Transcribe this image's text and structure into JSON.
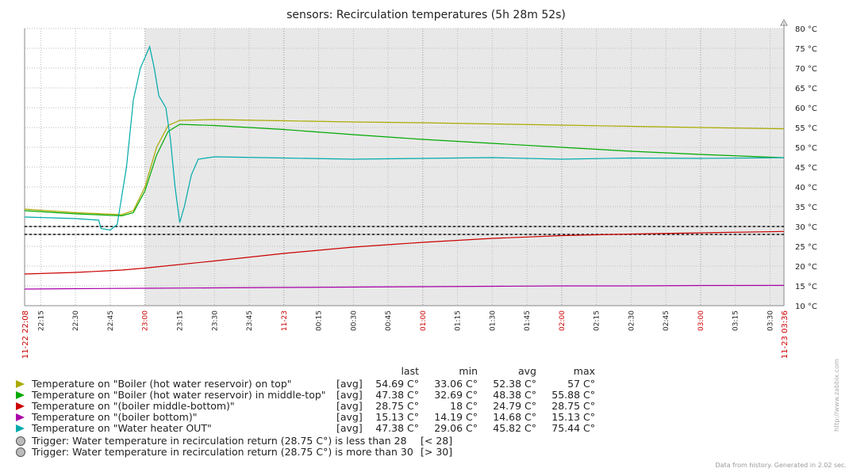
{
  "page": {
    "footer": "Data from history. Generated in 2.02 sec.",
    "side_text": "http://www.zabbix.com"
  },
  "chart_data": {
    "type": "line",
    "title": "sensors: Recirculation temperatures (5h 28m 52s)",
    "x_range": [
      "11-22 22:08",
      "11-23 03:36"
    ],
    "x_tick_labels": [
      "22:15",
      "22:30",
      "22:45",
      "23:00",
      "23:15",
      "23:30",
      "23:45",
      "11-23",
      "00:15",
      "00:30",
      "00:45",
      "01:00",
      "01:15",
      "01:30",
      "01:45",
      "02:00",
      "02:15",
      "02:30",
      "02:45",
      "03:00",
      "03:15",
      "03:30"
    ],
    "x_tick_highlight": [
      "23:00",
      "11-23",
      "01:00",
      "02:00",
      "03:00"
    ],
    "x_edge_labels": [
      "11-22 22:08",
      "11-23 03:36"
    ],
    "y_tick_labels": [
      "10 °C",
      "15 °C",
      "20 °C",
      "25 °C",
      "30 °C",
      "35 °C",
      "40 °C",
      "45 °C",
      "50 °C",
      "55 °C",
      "60 °C",
      "65 °C",
      "70 °C",
      "75 °C",
      "80 °C"
    ],
    "ylim": [
      10,
      80
    ],
    "grid": true,
    "shaded_region": [
      "23:00",
      "03:36"
    ],
    "triggers": [
      28,
      30
    ],
    "series": [
      {
        "name": "Temperature on \"Boiler (hot water reservoir) on top\"",
        "color": "#aaaa00",
        "points": [
          [
            "22:08",
            34.4
          ],
          [
            "22:30",
            33.5
          ],
          [
            "22:50",
            33.0
          ],
          [
            "22:55",
            34
          ],
          [
            "23:00",
            40
          ],
          [
            "23:05",
            50
          ],
          [
            "23:10",
            55.5
          ],
          [
            "23:15",
            56.8
          ],
          [
            "23:30",
            57.0
          ],
          [
            "00:00",
            56.7
          ],
          [
            "00:30",
            56.4
          ],
          [
            "01:00",
            56.2
          ],
          [
            "01:30",
            55.9
          ],
          [
            "02:00",
            55.6
          ],
          [
            "02:30",
            55.3
          ],
          [
            "03:00",
            55.0
          ],
          [
            "03:36",
            54.69
          ]
        ]
      },
      {
        "name": "Temperature on \"Boiler (hot water reservoir) in middle-top\"",
        "color": "#00aa00",
        "points": [
          [
            "22:08",
            34.0
          ],
          [
            "22:30",
            33.2
          ],
          [
            "22:50",
            32.7
          ],
          [
            "22:55",
            33.5
          ],
          [
            "23:00",
            39
          ],
          [
            "23:05",
            48
          ],
          [
            "23:10",
            54
          ],
          [
            "23:15",
            55.8
          ],
          [
            "23:30",
            55.5
          ],
          [
            "00:00",
            54.5
          ],
          [
            "00:30",
            53.2
          ],
          [
            "01:00",
            52.0
          ],
          [
            "01:30",
            51.0
          ],
          [
            "02:00",
            50.0
          ],
          [
            "02:30",
            49.0
          ],
          [
            "03:00",
            48.2
          ],
          [
            "03:36",
            47.38
          ]
        ]
      },
      {
        "name": "Temperature on \"(boiler middle-bottom)\"",
        "color": "#cc0000",
        "points": [
          [
            "22:08",
            18.0
          ],
          [
            "22:30",
            18.4
          ],
          [
            "22:50",
            19.0
          ],
          [
            "23:00",
            19.5
          ],
          [
            "23:30",
            21.3
          ],
          [
            "00:00",
            23.2
          ],
          [
            "00:30",
            24.8
          ],
          [
            "01:00",
            26.0
          ],
          [
            "01:30",
            27.0
          ],
          [
            "02:00",
            27.7
          ],
          [
            "02:30",
            28.1
          ],
          [
            "03:00",
            28.4
          ],
          [
            "03:36",
            28.75
          ]
        ]
      },
      {
        "name": "Temperature on \"(boiler bottom)\"",
        "color": "#aa00aa",
        "points": [
          [
            "22:08",
            14.2
          ],
          [
            "22:30",
            14.3
          ],
          [
            "23:00",
            14.4
          ],
          [
            "23:30",
            14.5
          ],
          [
            "00:00",
            14.6
          ],
          [
            "00:30",
            14.7
          ],
          [
            "01:00",
            14.8
          ],
          [
            "01:30",
            14.9
          ],
          [
            "02:00",
            15.0
          ],
          [
            "02:30",
            15.0
          ],
          [
            "03:00",
            15.1
          ],
          [
            "03:36",
            15.13
          ]
        ]
      },
      {
        "name": "Temperature on \"Water heater OUT\"",
        "color": "#00aaaa",
        "points": [
          [
            "22:08",
            32.4
          ],
          [
            "22:30",
            32.0
          ],
          [
            "22:40",
            31.6
          ],
          [
            "22:41",
            29.5
          ],
          [
            "22:45",
            29.1
          ],
          [
            "22:48",
            30.5
          ],
          [
            "22:52",
            45
          ],
          [
            "22:55",
            62
          ],
          [
            "22:58",
            70
          ],
          [
            "23:02",
            75.4
          ],
          [
            "23:04",
            70
          ],
          [
            "23:06",
            63
          ],
          [
            "23:09",
            60
          ],
          [
            "23:11",
            52
          ],
          [
            "23:13",
            40
          ],
          [
            "23:15",
            31
          ],
          [
            "23:17",
            35
          ],
          [
            "23:20",
            43
          ],
          [
            "23:23",
            47
          ],
          [
            "23:30",
            47.6
          ],
          [
            "00:00",
            47.3
          ],
          [
            "00:30",
            47.0
          ],
          [
            "01:00",
            47.2
          ],
          [
            "01:30",
            47.4
          ],
          [
            "02:00",
            47.0
          ],
          [
            "02:30",
            47.3
          ],
          [
            "03:00",
            47.2
          ],
          [
            "03:36",
            47.38
          ]
        ]
      }
    ],
    "legend_header": {
      "last": "last",
      "min": "min",
      "avg": "avg",
      "max": "max"
    },
    "legend": [
      {
        "name": "Temperature on \"Boiler (hot water reservoir) on top\"",
        "func": "[avg]",
        "last": "54.69 C°",
        "min": "33.06 C°",
        "avg": "52.38 C°",
        "max": "57 C°",
        "color": "#aaaa00"
      },
      {
        "name": "Temperature on \"Boiler (hot water reservoir) in middle-top\"",
        "func": "[avg]",
        "last": "47.38 C°",
        "min": "32.69 C°",
        "avg": "48.38 C°",
        "max": "55.88 C°",
        "color": "#00aa00"
      },
      {
        "name": "Temperature on \"(boiler middle-bottom)\"",
        "func": "[avg]",
        "last": "28.75 C°",
        "min": "18 C°",
        "avg": "24.79 C°",
        "max": "28.75 C°",
        "color": "#cc0000"
      },
      {
        "name": "Temperature on \"(boiler bottom)\"",
        "func": "[avg]",
        "last": "15.13 C°",
        "min": "14.19 C°",
        "avg": "14.68 C°",
        "max": "15.13 C°",
        "color": "#aa00aa"
      },
      {
        "name": "Temperature on \"Water heater OUT\"",
        "func": "[avg]",
        "last": "47.38 C°",
        "min": "29.06 C°",
        "avg": "45.82 C°",
        "max": "75.44 C°",
        "color": "#00aaaa"
      }
    ],
    "trigger_legend": [
      {
        "name": "Trigger: Water temperature in recirculation return (28.75 C°) is less than 28",
        "cond": "[< 28]"
      },
      {
        "name": "Trigger: Water temperature in recirculation return (28.75 C°) is more than 30",
        "cond": "[> 30]"
      }
    ]
  }
}
